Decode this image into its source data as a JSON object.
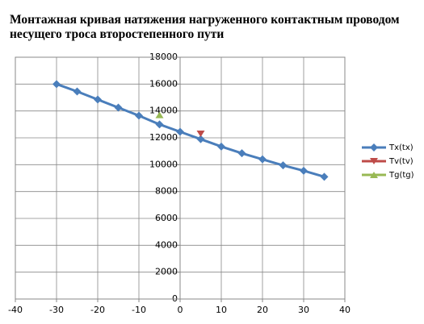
{
  "chart_data": {
    "type": "line",
    "title": "Монтажная кривая натяжения нагруженного контактным проводом несущего троса второстепенного пути",
    "series": [
      {
        "name": "Tx(tx)",
        "color": "#4a7ebb",
        "marker": "diamond",
        "x": [
          -30,
          -25,
          -20,
          -15,
          -10,
          -5,
          0,
          5,
          10,
          15,
          20,
          25,
          30,
          35
        ],
        "values": [
          16000,
          15450,
          14850,
          14250,
          13650,
          13000,
          12450,
          11900,
          11350,
          10850,
          10400,
          9950,
          9550,
          9100
        ]
      },
      {
        "name": "Tv(tv)",
        "color": "#be4b48",
        "marker": "triangle-down",
        "x": [
          5
        ],
        "values": [
          12300
        ]
      },
      {
        "name": "Tg(tg)",
        "color": "#98b954",
        "marker": "triangle-up",
        "x": [
          -5
        ],
        "values": [
          13700
        ]
      }
    ],
    "xlim": [
      -40,
      40
    ],
    "xticks": [
      -40,
      -30,
      -20,
      -10,
      0,
      10,
      20,
      30,
      40
    ],
    "ylim": [
      0,
      18000
    ],
    "yticks": [
      0,
      2000,
      4000,
      6000,
      8000,
      10000,
      12000,
      14000,
      16000,
      18000
    ],
    "grid": true,
    "legend": "right"
  }
}
